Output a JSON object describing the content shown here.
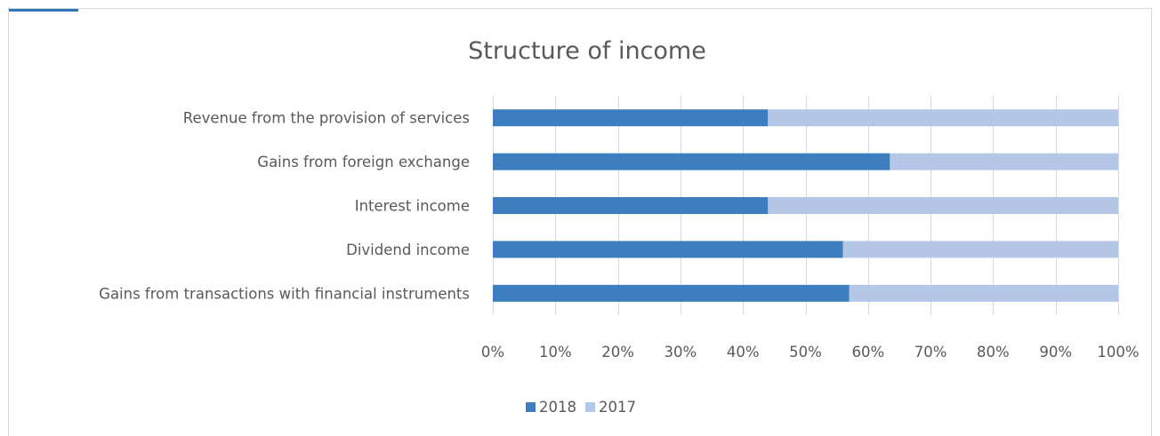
{
  "chart_data": {
    "type": "bar",
    "orientation": "horizontal",
    "stacking": "percent",
    "title": "Structure of income",
    "xlabel": "",
    "ylabel": "",
    "xlim": [
      0,
      100
    ],
    "x_ticks": [
      "0%",
      "10%",
      "20%",
      "30%",
      "40%",
      "50%",
      "60%",
      "70%",
      "80%",
      "90%",
      "100%"
    ],
    "grid": "vertical",
    "legend_position": "bottom",
    "categories": [
      "Revenue from the provision of services",
      "Gains from foreign exchange",
      "Interest income",
      "Dividend income",
      "Gains from transactions with financial instruments"
    ],
    "series": [
      {
        "name": "2018",
        "color": "#3d7ebf",
        "values": [
          44,
          63.5,
          44,
          56,
          57
        ]
      },
      {
        "name": "2017",
        "color": "#b4c7e7",
        "values": [
          56,
          36.5,
          56,
          44,
          43
        ]
      }
    ]
  }
}
